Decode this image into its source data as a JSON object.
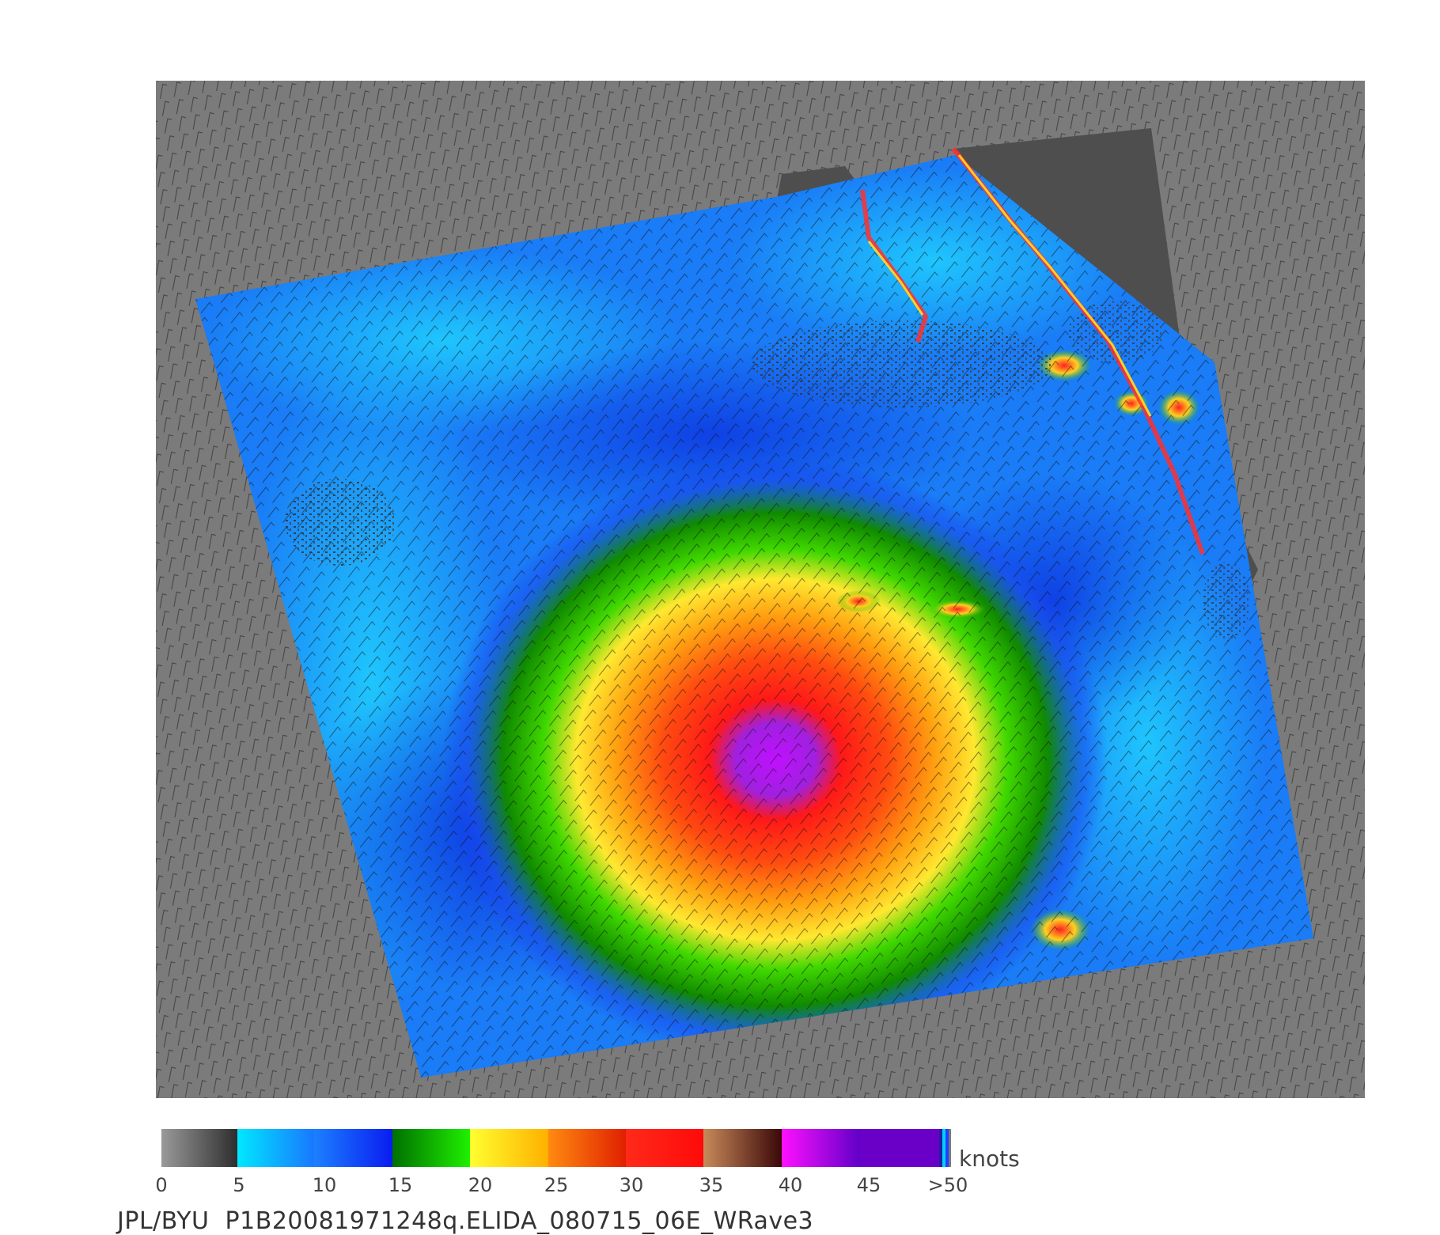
{
  "legend": {
    "unit": "knots",
    "ticks": [
      "0",
      "5",
      "10",
      "15",
      "20",
      "25",
      "30",
      "35",
      "40",
      "45",
      ">50"
    ]
  },
  "caption": "JPL/BYU  P1B20081971248q.ELIDA_080715_06E_WRave3"
}
